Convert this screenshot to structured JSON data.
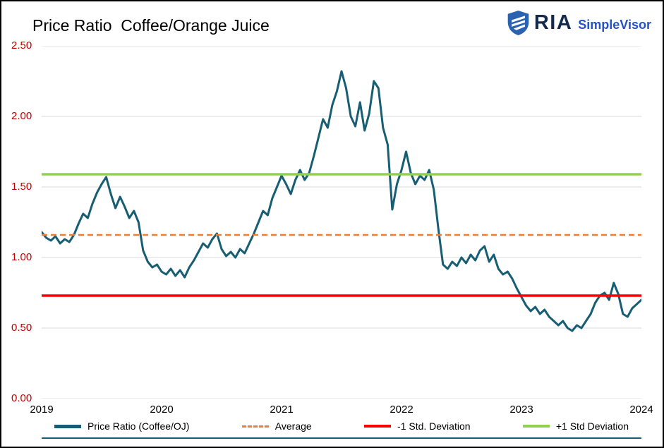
{
  "header": {
    "logo": {
      "company": "RIA",
      "product": "SimpleVisor",
      "company_color": "#16294E",
      "product_color": "#2553C5",
      "icon_color": "#2A62B0",
      "icon": "ria-shield-icon"
    }
  },
  "chart_data": {
    "type": "line",
    "title": "Price Ratio  Coffee/Orange Juice",
    "xlabel": "",
    "ylabel": "",
    "x_range": [
      2019,
      2024
    ],
    "ylim": [
      0,
      2.5
    ],
    "y_tick_step": 0.5,
    "x_tick_labels": [
      "2019",
      "2020",
      "2021",
      "2022",
      "2023",
      "2024"
    ],
    "y_tick_labels": [
      "2.50",
      "2.00",
      "1.50",
      "1.00",
      "0.50",
      "0.00"
    ],
    "grid": true,
    "legend_position": "bottom",
    "axis_colors": {
      "y_labels": "#C00000",
      "x_labels": "#000000",
      "grid": "#D9D9D9"
    },
    "series": [
      {
        "name": "Price Ratio (Coffee/OJ)",
        "kind": "line",
        "color": "#175E73",
        "width": 3,
        "values": [
          1.18,
          1.14,
          1.12,
          1.15,
          1.1,
          1.13,
          1.11,
          1.16,
          1.24,
          1.31,
          1.28,
          1.38,
          1.46,
          1.52,
          1.57,
          1.45,
          1.35,
          1.43,
          1.36,
          1.28,
          1.33,
          1.25,
          1.05,
          0.97,
          0.93,
          0.95,
          0.9,
          0.88,
          0.92,
          0.87,
          0.91,
          0.86,
          0.93,
          0.98,
          1.04,
          1.1,
          1.07,
          1.13,
          1.17,
          1.06,
          1.01,
          1.04,
          1.0,
          1.06,
          1.03,
          1.1,
          1.17,
          1.25,
          1.33,
          1.3,
          1.42,
          1.5,
          1.58,
          1.52,
          1.45,
          1.55,
          1.62,
          1.55,
          1.6,
          1.72,
          1.85,
          1.98,
          1.92,
          2.08,
          2.18,
          2.32,
          2.2,
          2.0,
          1.93,
          2.1,
          1.9,
          2.02,
          2.25,
          2.2,
          1.92,
          1.8,
          1.34,
          1.52,
          1.62,
          1.75,
          1.6,
          1.52,
          1.58,
          1.55,
          1.62,
          1.48,
          1.2,
          0.95,
          0.92,
          0.97,
          0.94,
          1.0,
          0.96,
          1.02,
          0.98,
          1.05,
          1.08,
          0.97,
          1.02,
          0.92,
          0.88,
          0.9,
          0.85,
          0.78,
          0.72,
          0.66,
          0.62,
          0.65,
          0.6,
          0.63,
          0.58,
          0.55,
          0.52,
          0.55,
          0.5,
          0.48,
          0.52,
          0.5,
          0.55,
          0.6,
          0.68,
          0.73,
          0.75,
          0.7,
          0.82,
          0.74,
          0.6,
          0.58,
          0.64,
          0.67,
          0.7
        ]
      },
      {
        "name": "Average",
        "kind": "hline",
        "color": "#ED7D31",
        "dash": true,
        "width": 2.5,
        "value": 1.16
      },
      {
        "name": "-1 Std. Deviation",
        "kind": "hline",
        "color": "#FF0000",
        "dash": false,
        "width": 3.5,
        "value": 0.73
      },
      {
        "name": "+1 Std Deviation",
        "kind": "hline",
        "color": "#92D050",
        "dash": false,
        "width": 3.5,
        "value": 1.59
      }
    ]
  }
}
